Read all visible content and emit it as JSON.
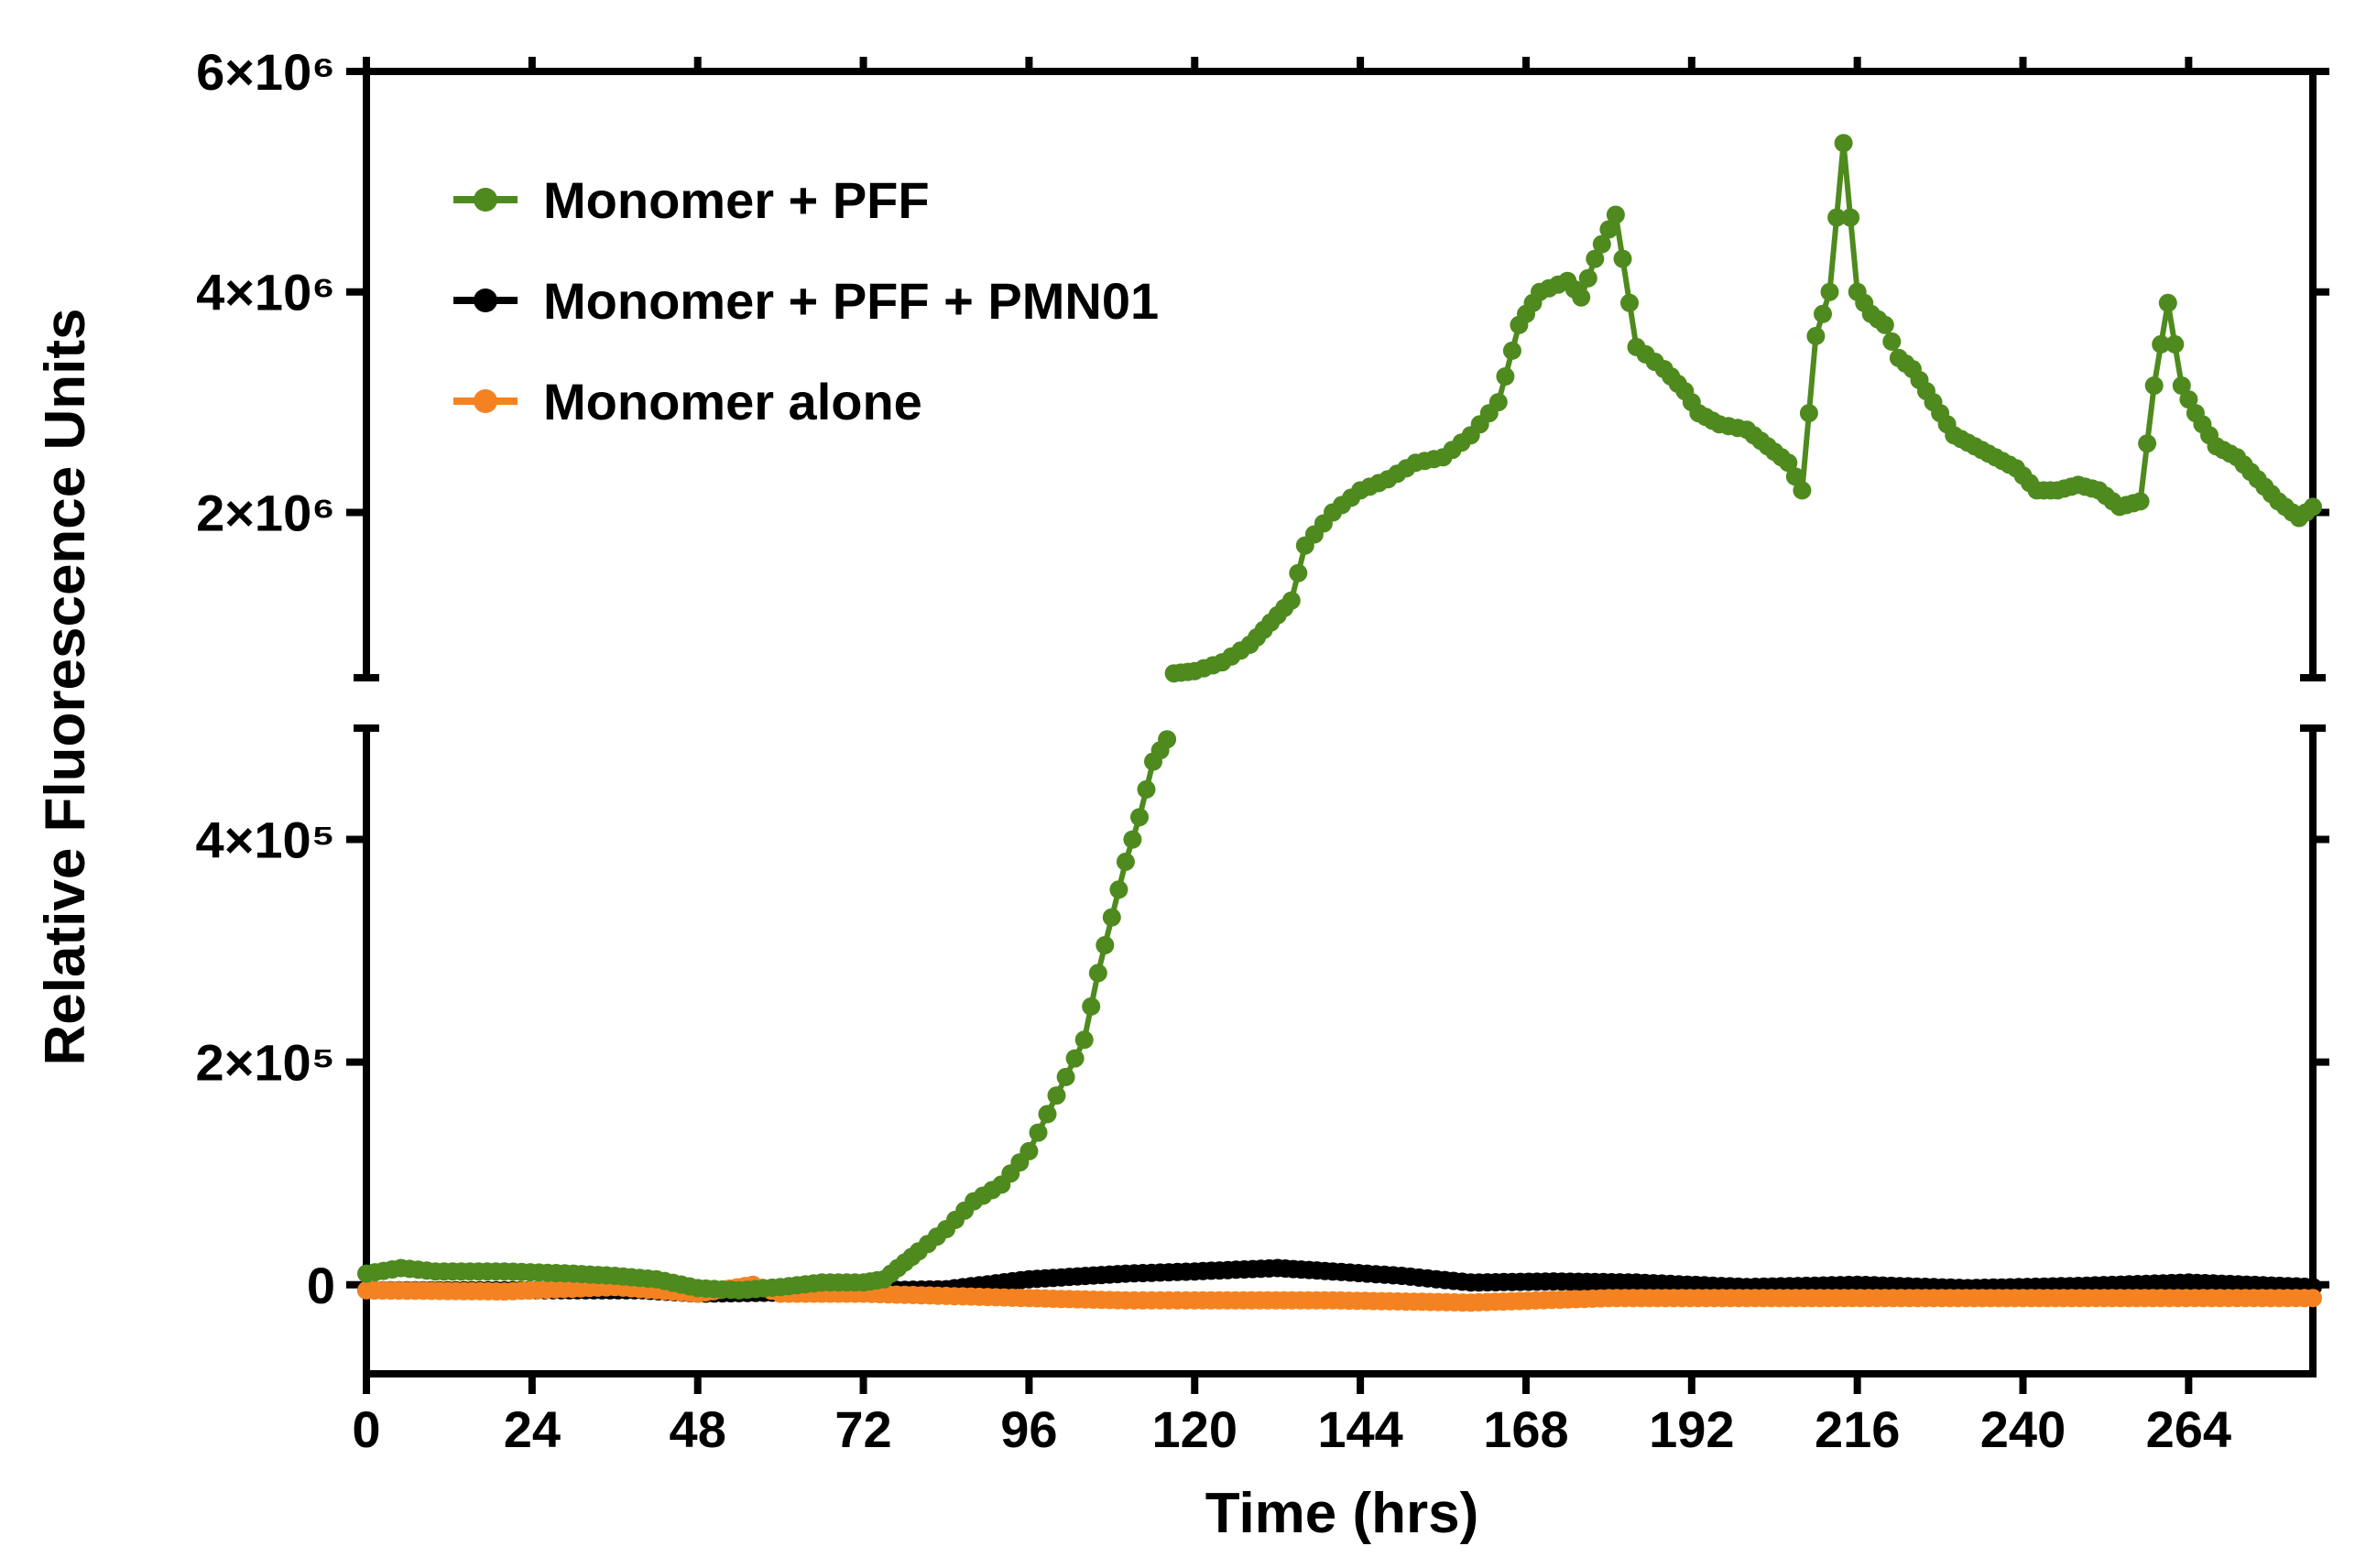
{
  "chart_data": {
    "type": "line",
    "xlabel": "Time (hrs)",
    "ylabel": "Relative Fluorescence Units",
    "xlim": [
      0,
      282
    ],
    "x_ticks": [
      0,
      24,
      48,
      72,
      96,
      120,
      144,
      168,
      192,
      216,
      240,
      264
    ],
    "y_axis_break": true,
    "y_lower_segment": {
      "range": [
        -80000,
        500000
      ],
      "ticks": [
        0,
        200000,
        400000
      ],
      "tick_labels": [
        "0",
        "2×10⁵",
        "4×10⁵"
      ]
    },
    "y_upper_segment": {
      "range": [
        500000,
        6000000
      ],
      "ticks": [
        2000000,
        4000000,
        6000000
      ],
      "tick_labels": [
        "2×10⁶",
        "4×10⁶",
        "6×10⁶"
      ]
    },
    "legend_position": "top-left",
    "colors": {
      "green": "#4e8a1e",
      "black": "#000000",
      "orange": "#f58220"
    },
    "series": [
      {
        "name": "Monomer + PFF",
        "color": "#4e8a1e",
        "points": [
          [
            0,
            10000
          ],
          [
            5,
            15000
          ],
          [
            10,
            12000
          ],
          [
            20,
            12000
          ],
          [
            30,
            10000
          ],
          [
            36,
            8000
          ],
          [
            42,
            5000
          ],
          [
            48,
            -3000
          ],
          [
            54,
            -5000
          ],
          [
            60,
            -2000
          ],
          [
            66,
            2000
          ],
          [
            72,
            2000
          ],
          [
            75,
            5000
          ],
          [
            78,
            20000
          ],
          [
            80,
            30000
          ],
          [
            84,
            50000
          ],
          [
            88,
            75000
          ],
          [
            92,
            90000
          ],
          [
            96,
            120000
          ],
          [
            100,
            170000
          ],
          [
            104,
            220000
          ],
          [
            106,
            280000
          ],
          [
            108,
            330000
          ],
          [
            110,
            380000
          ],
          [
            112,
            420000
          ],
          [
            114,
            470000
          ],
          [
            116,
            490000
          ],
          [
            117,
            540000
          ],
          [
            120,
            560000
          ],
          [
            124,
            640000
          ],
          [
            128,
            800000
          ],
          [
            131,
            1000000
          ],
          [
            134,
            1200000
          ],
          [
            136,
            1700000
          ],
          [
            140,
            2000000
          ],
          [
            144,
            2200000
          ],
          [
            148,
            2300000
          ],
          [
            152,
            2450000
          ],
          [
            156,
            2500000
          ],
          [
            160,
            2700000
          ],
          [
            164,
            3000000
          ],
          [
            167,
            3700000
          ],
          [
            170,
            4000000
          ],
          [
            174,
            4100000
          ],
          [
            176,
            3950000
          ],
          [
            178,
            4300000
          ],
          [
            181,
            4700000
          ],
          [
            184,
            3500000
          ],
          [
            188,
            3300000
          ],
          [
            191,
            3100000
          ],
          [
            193,
            2900000
          ],
          [
            196,
            2800000
          ],
          [
            200,
            2750000
          ],
          [
            203,
            2600000
          ],
          [
            206,
            2450000
          ],
          [
            208,
            2200000
          ],
          [
            210,
            3600000
          ],
          [
            212,
            4000000
          ],
          [
            214,
            5350000
          ],
          [
            216,
            4000000
          ],
          [
            218,
            3800000
          ],
          [
            220,
            3700000
          ],
          [
            222,
            3400000
          ],
          [
            224,
            3300000
          ],
          [
            226,
            3100000
          ],
          [
            228,
            2900000
          ],
          [
            230,
            2700000
          ],
          [
            233,
            2600000
          ],
          [
            236,
            2500000
          ],
          [
            239,
            2400000
          ],
          [
            242,
            2200000
          ],
          [
            245,
            2200000
          ],
          [
            248,
            2250000
          ],
          [
            251,
            2200000
          ],
          [
            254,
            2050000
          ],
          [
            257,
            2100000
          ],
          [
            259,
            3150000
          ],
          [
            261,
            3900000
          ],
          [
            263,
            3150000
          ],
          [
            265,
            2900000
          ],
          [
            268,
            2600000
          ],
          [
            271,
            2500000
          ],
          [
            274,
            2300000
          ],
          [
            277,
            2100000
          ],
          [
            280,
            1950000
          ],
          [
            282,
            2050000
          ]
        ]
      },
      {
        "name": "Monomer + PFF + PMN01",
        "color": "#000000",
        "points": [
          [
            0,
            -5000
          ],
          [
            20,
            -5000
          ],
          [
            40,
            -5000
          ],
          [
            48,
            -8000
          ],
          [
            60,
            -7000
          ],
          [
            72,
            -5000
          ],
          [
            84,
            -4000
          ],
          [
            96,
            5000
          ],
          [
            110,
            10000
          ],
          [
            120,
            12000
          ],
          [
            132,
            15000
          ],
          [
            140,
            12000
          ],
          [
            150,
            8000
          ],
          [
            160,
            2000
          ],
          [
            172,
            3000
          ],
          [
            184,
            2000
          ],
          [
            200,
            -2000
          ],
          [
            216,
            0
          ],
          [
            232,
            -3000
          ],
          [
            248,
            -1000
          ],
          [
            264,
            2000
          ],
          [
            282,
            -2000
          ]
        ]
      },
      {
        "name": "Monomer alone",
        "color": "#f58220",
        "points": [
          [
            0,
            -5000
          ],
          [
            20,
            -6000
          ],
          [
            36,
            -2000
          ],
          [
            48,
            -8000
          ],
          [
            56,
            0
          ],
          [
            60,
            -8000
          ],
          [
            72,
            -8000
          ],
          [
            84,
            -10000
          ],
          [
            96,
            -12000
          ],
          [
            110,
            -14000
          ],
          [
            120,
            -14000
          ],
          [
            140,
            -14000
          ],
          [
            160,
            -16000
          ],
          [
            180,
            -12000
          ],
          [
            200,
            -12000
          ],
          [
            220,
            -12000
          ],
          [
            240,
            -12000
          ],
          [
            260,
            -12000
          ],
          [
            282,
            -12000
          ]
        ]
      }
    ]
  }
}
